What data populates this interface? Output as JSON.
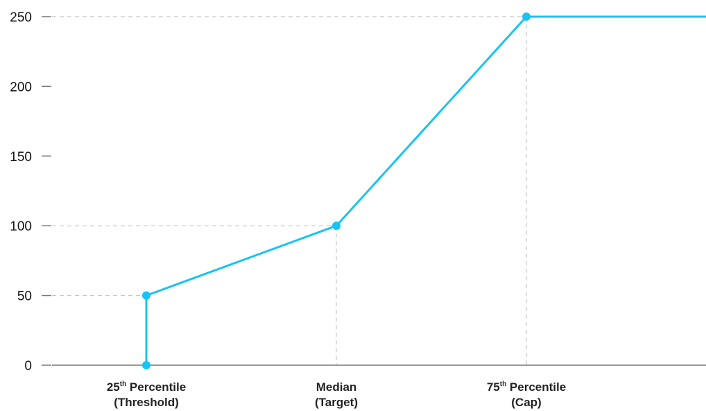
{
  "chart_data": {
    "type": "line",
    "title": "",
    "xlabel": "",
    "ylabel": "",
    "ylim": [
      0,
      250
    ],
    "yticks": [
      "0",
      "50",
      "100",
      "150",
      "200",
      "250"
    ],
    "x_categories": [
      {
        "main": "25",
        "sup": "th",
        "rest": " Percentile",
        "line2": "(Threshold)"
      },
      {
        "main": "Median",
        "sup": "",
        "rest": "",
        "line2": "(Target)"
      },
      {
        "main": "75",
        "sup": "th",
        "rest": " Percentile",
        "line2": "(Cap)"
      }
    ],
    "series": [
      {
        "points": [
          {
            "x": "25th Percentile (Threshold)",
            "y": 0
          },
          {
            "x": "25th Percentile (Threshold)",
            "y": 50
          },
          {
            "x": "Median (Target)",
            "y": 100
          },
          {
            "x": "75th Percentile (Cap)",
            "y": 250
          }
        ],
        "extends_flat_after_cap": true,
        "color": "#18C3F3"
      }
    ],
    "reference_lines": [
      {
        "x": "25th Percentile (Threshold)",
        "y": 50
      },
      {
        "x": "Median (Target)",
        "y": 100
      },
      {
        "x": "75th Percentile (Cap)",
        "y": 250
      }
    ],
    "colors": {
      "line": "#18C3F3",
      "axis": "#777777",
      "guide": "#c7c7c7",
      "text": "#111111"
    }
  }
}
